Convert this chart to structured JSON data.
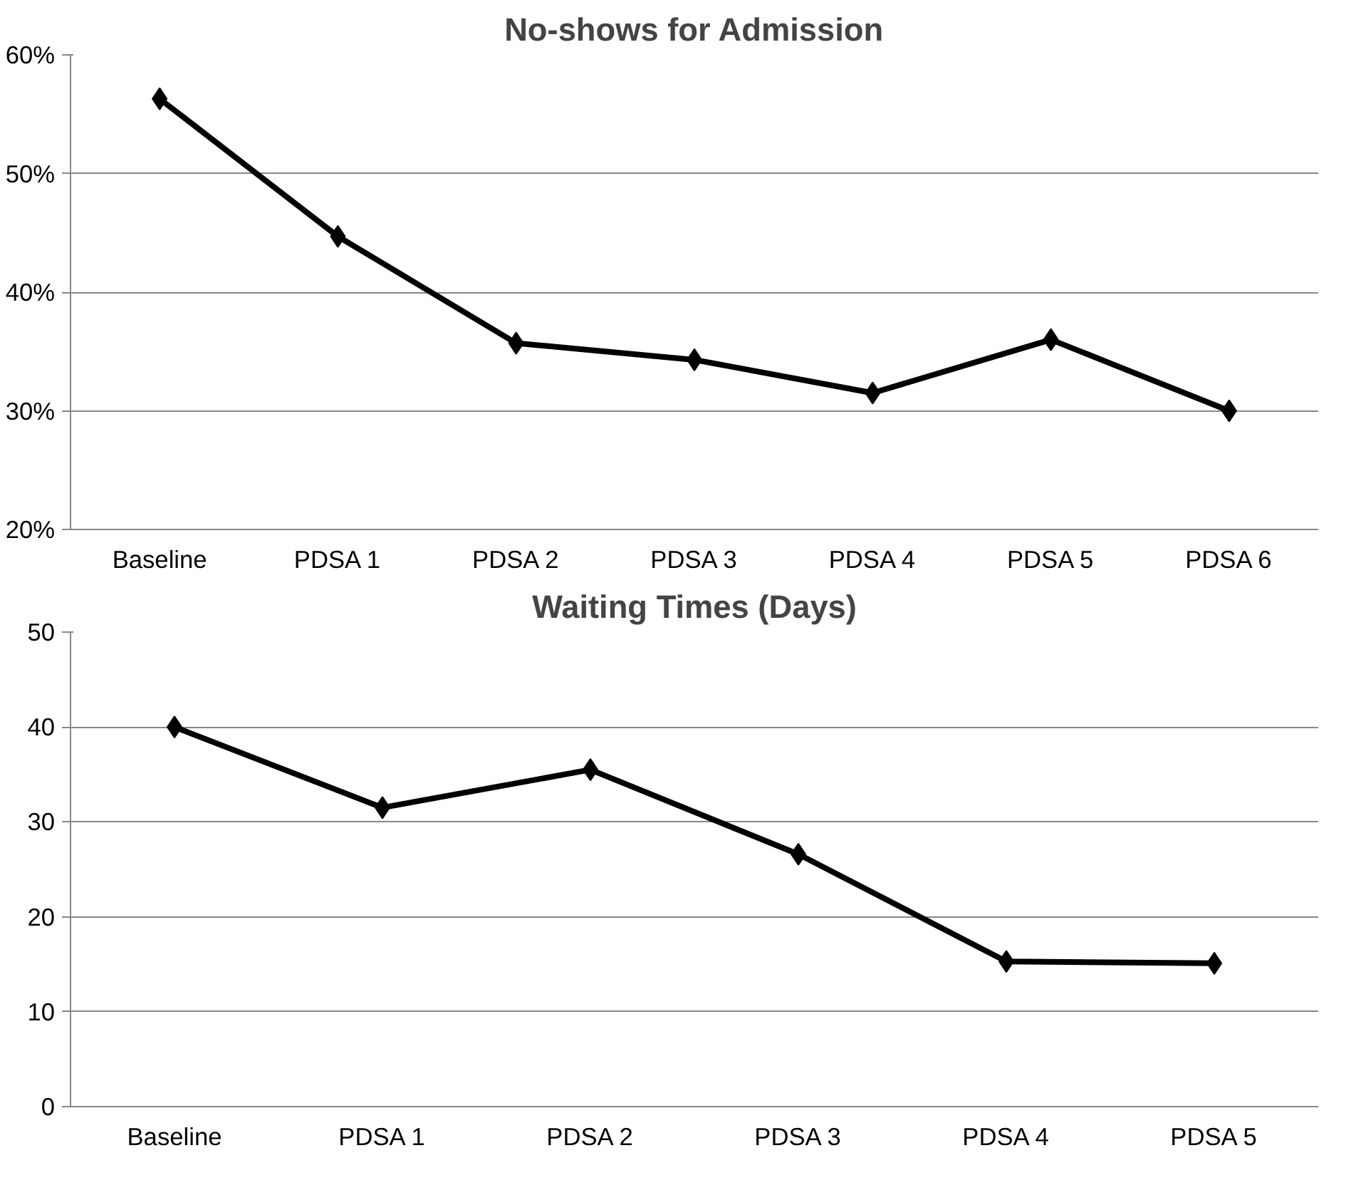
{
  "chart_data": [
    {
      "type": "line",
      "title": "No-shows for Admission",
      "categories": [
        "Baseline",
        "PDSA 1",
        "PDSA 2",
        "PDSA 3",
        "PDSA 4",
        "PDSA 5",
        "PDSA 6"
      ],
      "series": [
        {
          "color": "#000000",
          "values": [
            56.3,
            44.7,
            35.7,
            34.3,
            31.5,
            36.0,
            30.0
          ]
        }
      ],
      "ylim": [
        20,
        60
      ],
      "yticks": [
        {
          "value": 20,
          "label": "20%"
        },
        {
          "value": 30,
          "label": "30%"
        },
        {
          "value": 40,
          "label": "40%"
        },
        {
          "value": 50,
          "label": "50%"
        },
        {
          "value": 60,
          "label": "60%"
        }
      ],
      "grid": "y",
      "marker": "diamond",
      "line_style": "solid"
    },
    {
      "type": "line",
      "title": "Waiting Times (Days)",
      "categories": [
        "Baseline",
        "PDSA 1",
        "PDSA 2",
        "PDSA 3",
        "PDSA 4",
        "PDSA 5"
      ],
      "series": [
        {
          "color": "#000000",
          "values": [
            40.0,
            31.5,
            35.5,
            26.6,
            15.3,
            15.1
          ]
        }
      ],
      "ylim": [
        0,
        50
      ],
      "yticks": [
        0,
        10,
        20,
        30,
        40,
        50
      ],
      "grid": "y",
      "marker": "diamond",
      "line_style": "solid"
    }
  ]
}
